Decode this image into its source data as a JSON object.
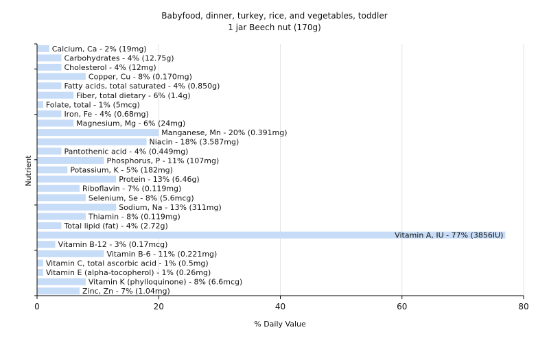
{
  "chart_data": {
    "type": "bar",
    "orientation": "horizontal",
    "title": "Babyfood, dinner, turkey, rice, and vegetables, toddler",
    "subtitle": "1 jar Beech nut (170g)",
    "xlabel": "% Daily Value",
    "ylabel": "Nutrient",
    "xlim": [
      0,
      80
    ],
    "xticks": [
      0,
      20,
      40,
      60,
      80
    ],
    "grid": true,
    "bar_color": "#c6dcf7",
    "categories": [
      "Calcium, Ca",
      "Carbohydrates",
      "Cholesterol",
      "Copper, Cu",
      "Fatty acids, total saturated",
      "Fiber, total dietary",
      "Folate, total",
      "Iron, Fe",
      "Magnesium, Mg",
      "Manganese, Mn",
      "Niacin",
      "Pantothenic acid",
      "Phosphorus, P",
      "Potassium, K",
      "Protein",
      "Riboflavin",
      "Selenium, Se",
      "Sodium, Na",
      "Thiamin",
      "Total lipid (fat)",
      "Vitamin A, IU",
      "Vitamin B-12",
      "Vitamin B-6",
      "Vitamin C, total ascorbic acid",
      "Vitamin E (alpha-tocopherol)",
      "Vitamin K (phylloquinone)",
      "Zinc, Zn"
    ],
    "values": [
      2,
      4,
      4,
      8,
      4,
      6,
      1,
      4,
      6,
      20,
      18,
      4,
      11,
      5,
      13,
      7,
      8,
      13,
      8,
      4,
      77,
      3,
      11,
      1,
      1,
      8,
      7
    ],
    "labels": [
      "Calcium, Ca - 2% (19mg)",
      "Carbohydrates - 4% (12.75g)",
      "Cholesterol - 4% (12mg)",
      "Copper, Cu - 8% (0.170mg)",
      "Fatty acids, total saturated - 4% (0.850g)",
      "Fiber, total dietary - 6% (1.4g)",
      "Folate, total - 1% (5mcg)",
      "Iron, Fe - 4% (0.68mg)",
      "Magnesium, Mg - 6% (24mg)",
      "Manganese, Mn - 20% (0.391mg)",
      "Niacin - 18% (3.587mg)",
      "Pantothenic acid - 4% (0.449mg)",
      "Phosphorus, P - 11% (107mg)",
      "Potassium, K - 5% (182mg)",
      "Protein - 13% (6.46g)",
      "Riboflavin - 7% (0.119mg)",
      "Selenium, Se - 8% (5.6mcg)",
      "Sodium, Na - 13% (311mg)",
      "Thiamin - 8% (0.119mg)",
      "Total lipid (fat) - 4% (2.72g)",
      "Vitamin A, IU - 77% (3856IU)",
      "Vitamin B-12 - 3% (0.17mcg)",
      "Vitamin B-6 - 11% (0.221mg)",
      "Vitamin C, total ascorbic acid - 1% (0.5mg)",
      "Vitamin E (alpha-tocopherol) - 1% (0.26mg)",
      "Vitamin K (phylloquinone) - 8% (6.6mcg)",
      "Zinc, Zn - 7% (1.04mg)"
    ]
  }
}
